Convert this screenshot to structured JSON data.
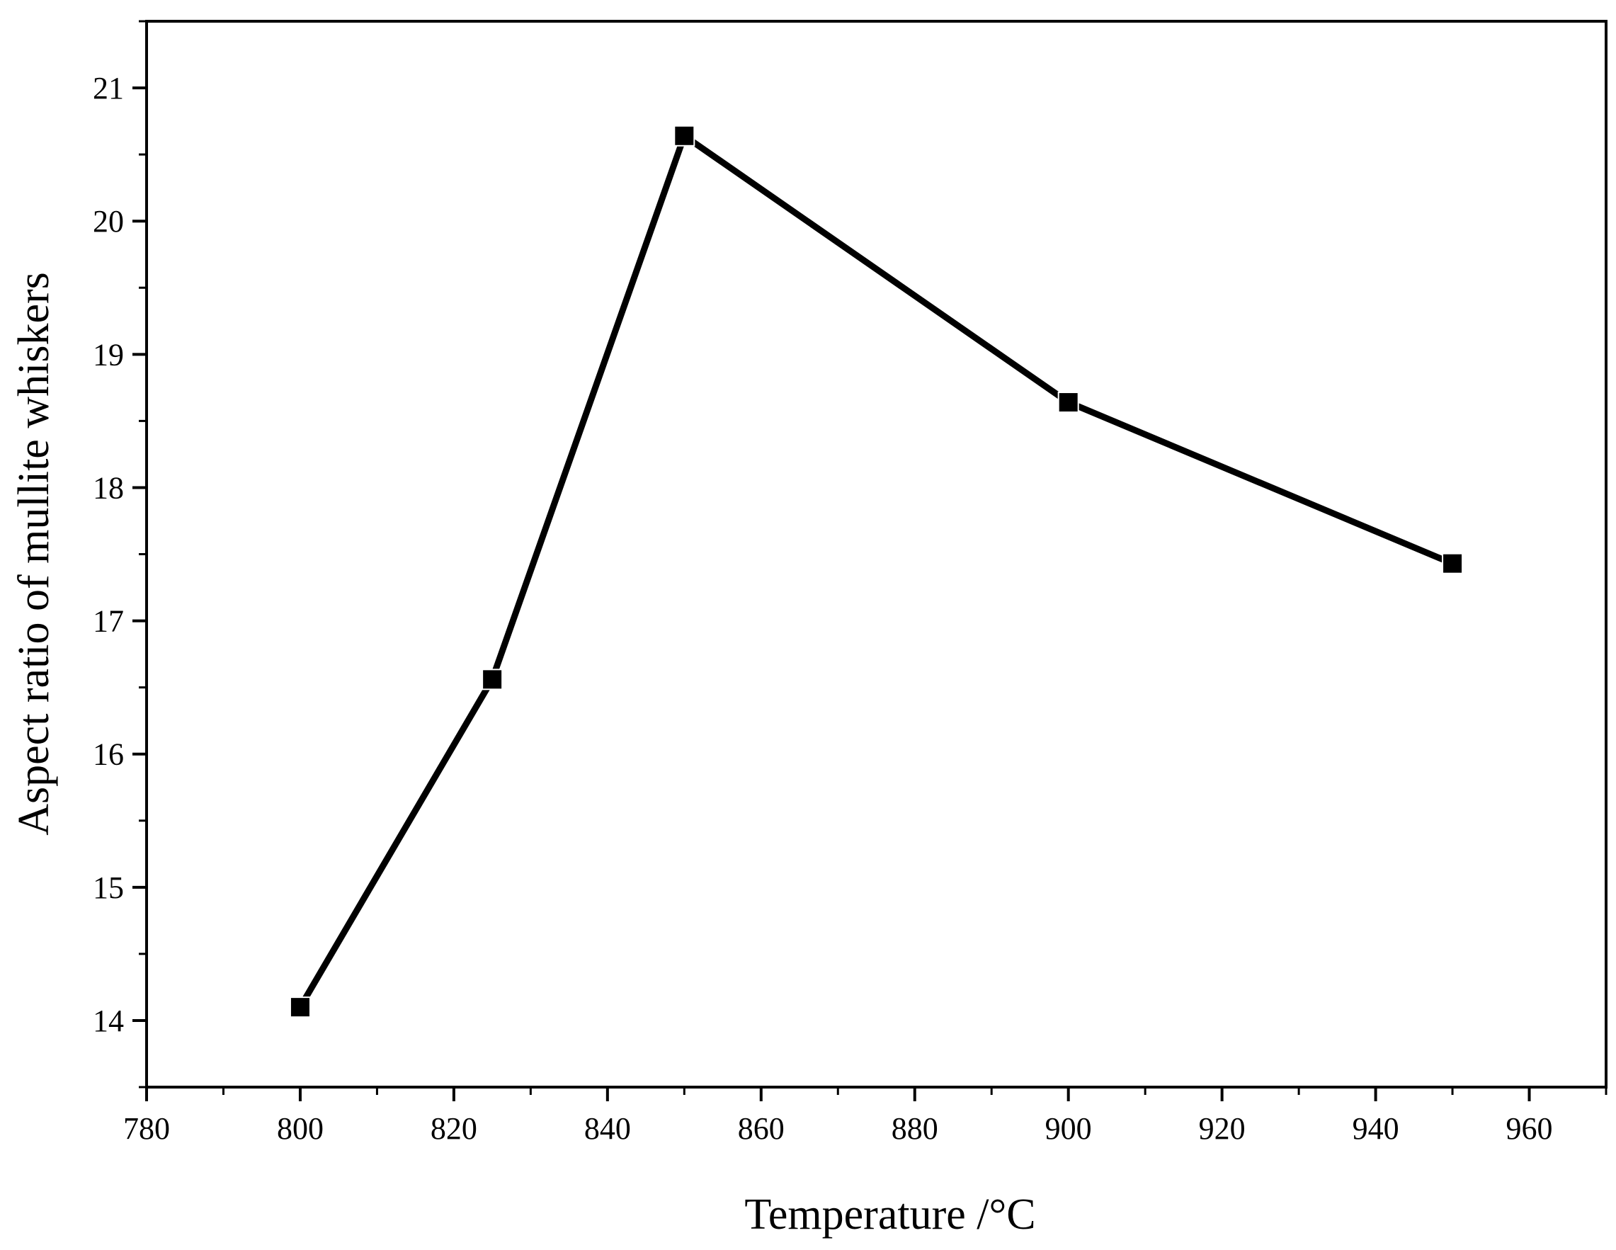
{
  "chart_data": {
    "type": "line",
    "title": "",
    "xlabel": "Temperature /°C",
    "ylabel": "Aspect ratio of mullite whiskers",
    "xlim": [
      780,
      970
    ],
    "ylim": [
      13.5,
      21.5
    ],
    "x_ticks": [
      780,
      800,
      820,
      840,
      860,
      880,
      900,
      920,
      940,
      960
    ],
    "y_ticks": [
      14,
      15,
      16,
      17,
      18,
      19,
      20,
      21
    ],
    "x_tick_labels": [
      "780",
      "800",
      "820",
      "840",
      "860",
      "880",
      "900",
      "920",
      "940",
      "960"
    ],
    "y_tick_labels": [
      "14",
      "15",
      "16",
      "17",
      "18",
      "19",
      "20",
      "21"
    ],
    "grid": false,
    "marker": "square",
    "series": [
      {
        "x": [
          800,
          825,
          850,
          900,
          950
        ],
        "y": [
          14.1,
          16.56,
          20.64,
          18.64,
          17.43
        ],
        "color": "#000000"
      }
    ]
  }
}
